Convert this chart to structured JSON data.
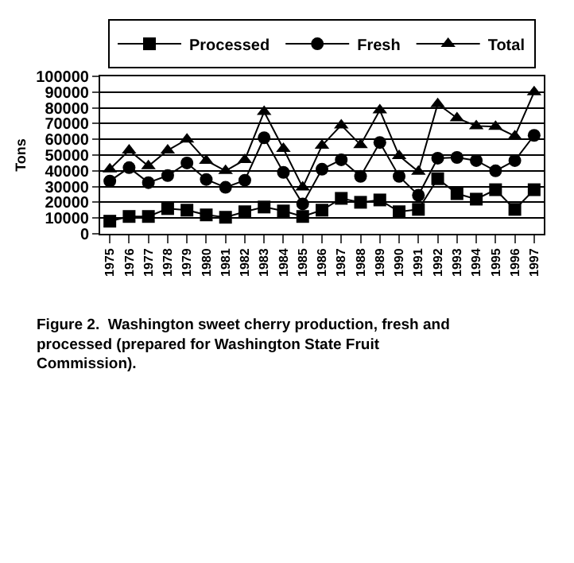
{
  "chart_data": {
    "type": "line",
    "ylabel": "Tons",
    "categories": [
      "1975",
      "1976",
      "1977",
      "1978",
      "1979",
      "1980",
      "1981",
      "1982",
      "1983",
      "1984",
      "1985",
      "1986",
      "1987",
      "1988",
      "1989",
      "1990",
      "1991",
      "1992",
      "1993",
      "1994",
      "1995",
      "1996",
      "1997"
    ],
    "series": [
      {
        "name": "Processed",
        "color": "#000000",
        "marker": "square",
        "values": [
          8000,
          11000,
          11000,
          16000,
          15000,
          12000,
          10500,
          14000,
          17000,
          14500,
          11000,
          15000,
          22500,
          20000,
          21500,
          14000,
          15500,
          35000,
          25500,
          22000,
          28000,
          15500,
          28000
        ]
      },
      {
        "name": "Fresh",
        "color": "#000000",
        "marker": "circle",
        "values": [
          33500,
          42000,
          32500,
          37000,
          45000,
          34500,
          29500,
          34000,
          61000,
          39000,
          19000,
          41000,
          47000,
          36500,
          58000,
          36500,
          24500,
          48000,
          48500,
          46500,
          40000,
          46500,
          62500
        ]
      },
      {
        "name": "Total",
        "color": "#000000",
        "marker": "triangle",
        "values": [
          41000,
          53000,
          43000,
          53000,
          60000,
          46500,
          40000,
          47000,
          77500,
          54000,
          29500,
          56000,
          69000,
          56500,
          78500,
          49500,
          39500,
          82500,
          73500,
          68500,
          68000,
          62000,
          90000
        ]
      }
    ],
    "ylim": [
      0,
      100000
    ],
    "yticks": [
      0,
      10000,
      20000,
      30000,
      40000,
      50000,
      60000,
      70000,
      80000,
      90000,
      100000
    ],
    "grid": "y",
    "legend": "top",
    "line_style": "solid",
    "annotations": [
      "Figure 2.  Washington sweet cherry production, fresh and processed (prepared for Washington State Fruit Commission)."
    ]
  }
}
